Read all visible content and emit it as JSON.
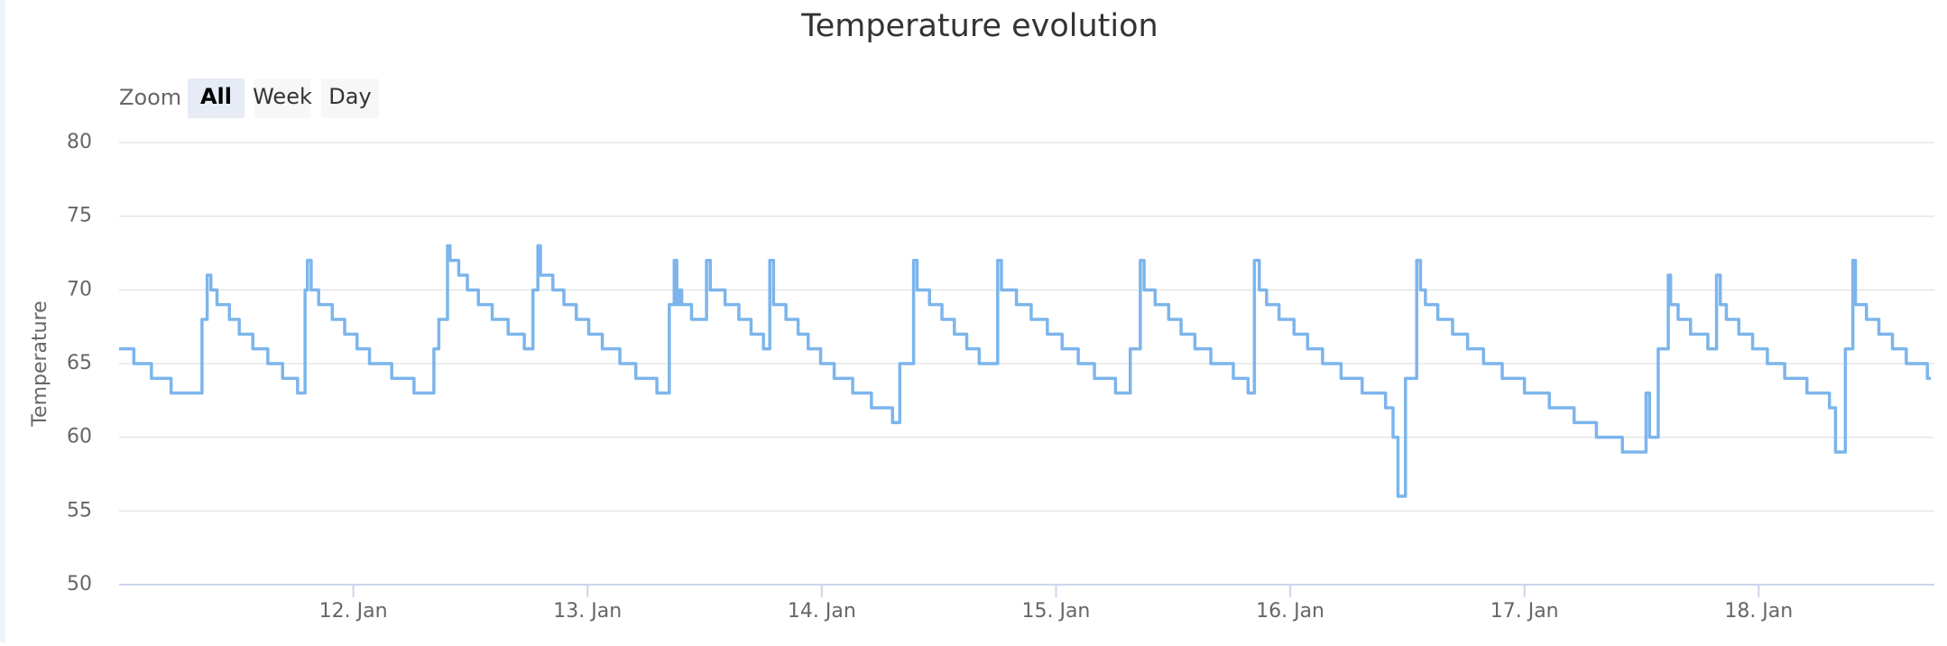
{
  "chart_data": {
    "type": "line",
    "title": "Temperature evolution",
    "range_selector": {
      "label": "Zoom",
      "buttons": [
        "All",
        "Week",
        "Day"
      ],
      "selected": 0
    },
    "y_label": "Temperature",
    "step": "after",
    "grid": true,
    "xlim": [
      11,
      18.75
    ],
    "xticks": [
      {
        "value": 12,
        "label": "12. Jan"
      },
      {
        "value": 13,
        "label": "13. Jan"
      },
      {
        "value": 14,
        "label": "14. Jan"
      },
      {
        "value": 15,
        "label": "15. Jan"
      },
      {
        "value": 16,
        "label": "16. Jan"
      },
      {
        "value": 17,
        "label": "17. Jan"
      },
      {
        "value": 18,
        "label": "18. Jan"
      }
    ],
    "ylim": [
      50,
      80
    ],
    "yticks": [
      50,
      55,
      60,
      65,
      70,
      75,
      80
    ],
    "x": [
      11.0,
      11.063,
      11.138,
      11.222,
      11.354,
      11.376,
      11.392,
      11.418,
      11.471,
      11.513,
      11.571,
      11.635,
      11.698,
      11.762,
      11.794,
      11.804,
      11.82,
      11.852,
      11.91,
      11.963,
      12.016,
      12.069,
      12.164,
      12.259,
      12.344,
      12.365,
      12.402,
      12.413,
      12.45,
      12.487,
      12.534,
      12.593,
      12.661,
      12.73,
      12.767,
      12.788,
      12.799,
      12.852,
      12.899,
      12.952,
      13.005,
      13.063,
      13.138,
      13.206,
      13.296,
      13.349,
      13.37,
      13.381,
      13.392,
      13.402,
      13.444,
      13.508,
      13.524,
      13.587,
      13.646,
      13.698,
      13.751,
      13.778,
      13.794,
      13.847,
      13.899,
      13.942,
      13.995,
      14.053,
      14.132,
      14.212,
      14.302,
      14.333,
      14.392,
      14.407,
      14.46,
      14.513,
      14.566,
      14.619,
      14.672,
      14.751,
      14.767,
      14.831,
      14.894,
      14.963,
      15.026,
      15.095,
      15.164,
      15.254,
      15.317,
      15.36,
      15.376,
      15.423,
      15.481,
      15.534,
      15.593,
      15.661,
      15.757,
      15.82,
      15.847,
      15.868,
      15.899,
      15.952,
      16.016,
      16.074,
      16.138,
      16.217,
      16.307,
      16.407,
      16.439,
      16.46,
      16.492,
      16.54,
      16.556,
      16.577,
      16.63,
      16.693,
      16.757,
      16.825,
      16.905,
      17.0,
      17.106,
      17.212,
      17.307,
      17.418,
      17.519,
      17.534,
      17.571,
      17.614,
      17.624,
      17.656,
      17.709,
      17.783,
      17.82,
      17.836,
      17.862,
      17.915,
      17.974,
      18.037,
      18.111,
      18.206,
      18.302,
      18.328,
      18.37,
      18.402,
      18.413,
      18.46,
      18.513,
      18.571,
      18.63,
      18.72,
      18.735
    ],
    "series": [
      {
        "color": "#7cb5ec",
        "values": [
          66,
          65,
          64,
          63,
          68,
          71,
          70,
          69,
          68,
          67,
          66,
          65,
          64,
          63,
          70,
          72,
          70,
          69,
          68,
          67,
          66,
          65,
          64,
          63,
          66,
          68,
          73,
          72,
          71,
          70,
          69,
          68,
          67,
          66,
          70,
          73,
          71,
          70,
          69,
          68,
          67,
          66,
          65,
          64,
          63,
          69,
          72,
          69,
          70,
          69,
          68,
          72,
          70,
          69,
          68,
          67,
          66,
          72,
          69,
          68,
          67,
          66,
          65,
          64,
          63,
          62,
          61,
          65,
          72,
          70,
          69,
          68,
          67,
          66,
          65,
          72,
          70,
          69,
          68,
          67,
          66,
          65,
          64,
          63,
          66,
          72,
          70,
          69,
          68,
          67,
          66,
          65,
          64,
          63,
          72,
          70,
          69,
          68,
          67,
          66,
          65,
          64,
          63,
          62,
          60,
          56,
          64,
          72,
          70,
          69,
          68,
          67,
          66,
          65,
          64,
          63,
          62,
          61,
          60,
          59,
          63,
          60,
          66,
          71,
          69,
          68,
          67,
          66,
          71,
          69,
          68,
          67,
          66,
          65,
          64,
          63,
          62,
          59,
          66,
          72,
          69,
          68,
          67,
          66,
          65,
          64,
          64
        ]
      }
    ]
  }
}
